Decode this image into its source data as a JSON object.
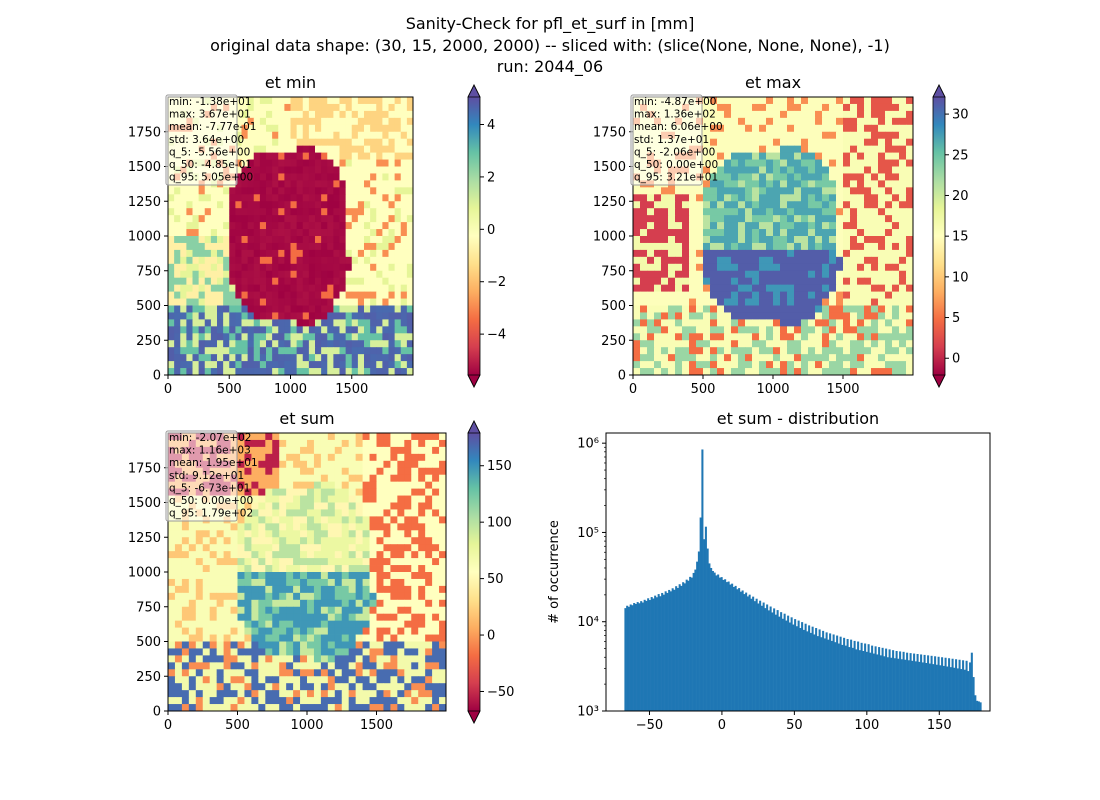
{
  "figure": {
    "title_lines": [
      "Sanity-Check for pfl_et_surf in [mm]",
      "original data shape: (30, 15, 2000, 2000) -- sliced with: (slice(None, None, None), -1)",
      "run: 2044_06"
    ]
  },
  "chart_data": [
    {
      "type": "heatmap",
      "title": "et min",
      "xlim": [
        0,
        2000
      ],
      "ylim": [
        0,
        2000
      ],
      "x_ticks": [
        "0",
        "500",
        "1000",
        "1500"
      ],
      "y_ticks": [
        "0",
        "250",
        "500",
        "750",
        "1000",
        "1250",
        "1500",
        "1750"
      ],
      "colormap": "Spectral",
      "colorbar": {
        "range": [
          -5.56,
          5.05
        ],
        "ticks": [
          "−4",
          "−2",
          "0",
          "2",
          "4"
        ],
        "tick_values": [
          -4,
          -2,
          0,
          2,
          4
        ],
        "extend": "both"
      },
      "stats": [
        "min: -1.38e+01",
        "max: 3.67e+01",
        "mean: -7.77e-01",
        "std: 3.64e+00",
        "q_5: -5.56e+00",
        "q_50: -4.85e-01",
        "q_95: 5.05e+00"
      ]
    },
    {
      "type": "heatmap",
      "title": "et max",
      "xlim": [
        0,
        2000
      ],
      "ylim": [
        0,
        2000
      ],
      "x_ticks": [
        "0",
        "500",
        "1000",
        "1500"
      ],
      "y_ticks": [
        "0",
        "250",
        "500",
        "750",
        "1000",
        "1250",
        "1500",
        "1750"
      ],
      "colormap": "Spectral",
      "colorbar": {
        "range": [
          -2.06,
          32.1
        ],
        "ticks": [
          "0",
          "5",
          "10",
          "15",
          "20",
          "25",
          "30"
        ],
        "tick_values": [
          0,
          5,
          10,
          15,
          20,
          25,
          30
        ],
        "extend": "both"
      },
      "stats": [
        "min: -4.87e+00",
        "max: 1.36e+02",
        "mean: 6.06e+00",
        "std: 1.37e+01",
        "q_5: -2.06e+00",
        "q_50: 0.00e+00",
        "q_95: 3.21e+01"
      ]
    },
    {
      "type": "heatmap",
      "title": "et sum",
      "xlim": [
        0,
        2000
      ],
      "ylim": [
        0,
        2000
      ],
      "x_ticks": [
        "0",
        "500",
        "1000",
        "1500"
      ],
      "y_ticks": [
        "0",
        "250",
        "500",
        "750",
        "1000",
        "1250",
        "1500",
        "1750"
      ],
      "colormap": "Spectral",
      "colorbar": {
        "range": [
          -67.3,
          179
        ],
        "ticks": [
          "−50",
          "0",
          "50",
          "100",
          "150"
        ],
        "tick_values": [
          -50,
          0,
          50,
          100,
          150
        ],
        "extend": "both"
      },
      "stats": [
        "min: -2.07e+02",
        "max: 1.16e+03",
        "mean: 1.95e+01",
        "std: 9.12e+01",
        "q_5: -6.73e+01",
        "q_50: 0.00e+00",
        "q_95: 1.79e+02"
      ]
    },
    {
      "type": "bar",
      "title": "et sum - distribution",
      "ylabel": "# of occurrence",
      "yscale": "log",
      "xlim": [
        -80,
        185
      ],
      "ylim": [
        1000,
        1300000
      ],
      "x_ticks": [
        "−50",
        "0",
        "50",
        "100",
        "150"
      ],
      "x_tick_values": [
        -50,
        0,
        50,
        100,
        150
      ],
      "y_ticks": [
        "10³",
        "10⁴",
        "10⁵",
        "10⁶"
      ],
      "y_tick_values": [
        1000,
        10000,
        100000,
        1000000
      ],
      "bar_color": "#1f77b4",
      "bins": {
        "start": -67.3,
        "end": 179,
        "count": 200
      },
      "values": [
        14200,
        15100,
        14700,
        15600,
        15300,
        16200,
        15800,
        16600,
        16100,
        17000,
        16400,
        17600,
        17100,
        18300,
        17500,
        18900,
        18200,
        19600,
        18800,
        20400,
        19300,
        21000,
        20100,
        21900,
        21000,
        22700,
        21900,
        23700,
        22800,
        25000,
        23900,
        26300,
        25200,
        27700,
        26900,
        29600,
        28800,
        31800,
        31200,
        35200,
        38400,
        47100,
        61200,
        147000,
        850000,
        84000,
        116000,
        66000,
        45000,
        40000,
        37000,
        35500,
        33000,
        33800,
        31200,
        31600,
        29400,
        29900,
        27800,
        28200,
        26100,
        26700,
        24500,
        25200,
        23100,
        23800,
        21700,
        22400,
        20400,
        21200,
        19200,
        20100,
        18100,
        19100,
        17000,
        18100,
        16000,
        17200,
        15100,
        16400,
        14200,
        15600,
        13400,
        14800,
        12700,
        14100,
        12000,
        13500,
        11400,
        12800,
        10800,
        12300,
        10300,
        11700,
        9800,
        11200,
        9300,
        10700,
        8900,
        10300,
        8500,
        9900,
        8100,
        9500,
        7800,
        9100,
        7500,
        8800,
        7200,
        8500,
        6900,
        8200,
        6700,
        7900,
        6500,
        7600,
        6300,
        7400,
        6100,
        7200,
        5900,
        7000,
        5700,
        6800,
        5500,
        6600,
        5400,
        6400,
        5200,
        6300,
        5100,
        6100,
        4900,
        6000,
        4800,
        5800,
        4700,
        5700,
        4600,
        5600,
        4500,
        5400,
        4400,
        5300,
        4300,
        5200,
        4200,
        5100,
        4100,
        5000,
        4000,
        4900,
        3950,
        4800,
        3900,
        4700,
        3850,
        4650,
        3800,
        4600,
        3750,
        4500,
        3700,
        4450,
        3650,
        4400,
        3600,
        4350,
        3550,
        4300,
        3500,
        4250,
        3450,
        4200,
        3400,
        4150,
        3350,
        4100,
        3300,
        4050,
        3250,
        4000,
        3200,
        3950,
        3150,
        3900,
        3100,
        3850,
        3050,
        3800,
        3000,
        3750,
        2950,
        3700,
        2900,
        3650,
        2800,
        3500,
        4500,
        2400,
        1500,
        1300,
        1280,
        1250
      ]
    }
  ]
}
